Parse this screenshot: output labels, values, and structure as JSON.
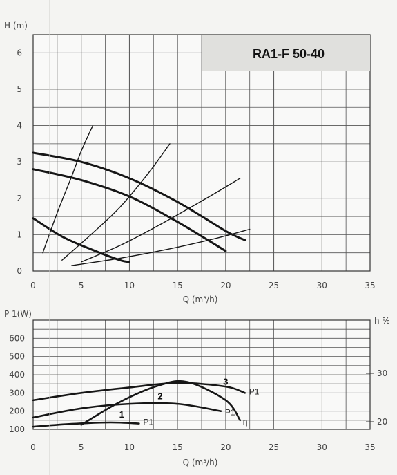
{
  "chart_data": [
    {
      "type": "line",
      "title": "RA1-F 50-40",
      "ylabel": "H (m)",
      "xlabel": "Q (m³/h)",
      "xlim": [
        0,
        35
      ],
      "ylim": [
        0,
        6.5
      ],
      "x_ticks": [
        "0",
        "5",
        "10",
        "15",
        "20",
        "25",
        "30",
        "35"
      ],
      "y_ticks": [
        "0",
        "1",
        "2",
        "3",
        "4",
        "5",
        "6"
      ],
      "grid": true,
      "series": [
        {
          "x": [
            0,
            5,
            10,
            15,
            20,
            22
          ],
          "y": [
            3.25,
            3.0,
            2.55,
            1.9,
            1.1,
            0.85
          ]
        },
        {
          "x": [
            0,
            5,
            10,
            15,
            20
          ],
          "y": [
            2.8,
            2.5,
            2.05,
            1.35,
            0.55
          ]
        },
        {
          "x": [
            0,
            3,
            6,
            9,
            10
          ],
          "y": [
            1.45,
            0.95,
            0.6,
            0.3,
            0.25
          ]
        },
        {
          "x": [
            1,
            2.5,
            4,
            5,
            6.2
          ],
          "y": [
            0.5,
            1.6,
            2.6,
            3.3,
            4.0
          ]
        },
        {
          "x": [
            3,
            6,
            9,
            12,
            14.2
          ],
          "y": [
            0.3,
            1.0,
            1.75,
            2.7,
            3.5
          ]
        },
        {
          "x": [
            5,
            9,
            13,
            18,
            21.5
          ],
          "y": [
            0.25,
            0.7,
            1.25,
            2.0,
            2.55
          ]
        },
        {
          "x": [
            4,
            9,
            14,
            19,
            22.5
          ],
          "y": [
            0.15,
            0.35,
            0.6,
            0.9,
            1.15
          ]
        }
      ]
    },
    {
      "type": "line",
      "ylabel": "P 1(W)",
      "y2label": "h %",
      "xlabel": "Q (m³/h)",
      "xlim": [
        0,
        35
      ],
      "ylim": [
        100,
        700
      ],
      "y2_ticks": [
        "20",
        "30"
      ],
      "x_ticks": [
        "0",
        "5",
        "10",
        "15",
        "20",
        "25",
        "30",
        "35"
      ],
      "y_ticks": [
        "100",
        "200",
        "300",
        "400",
        "500",
        "600"
      ],
      "grid": true,
      "series": [
        {
          "label": "3",
          "end_label": "P1",
          "x": [
            0,
            5,
            10,
            15,
            20,
            22
          ],
          "y": [
            260,
            300,
            330,
            355,
            335,
            300
          ]
        },
        {
          "label": "2",
          "end_label": "P1",
          "x": [
            0,
            5,
            10,
            15,
            19.5
          ],
          "y": [
            165,
            215,
            240,
            240,
            200
          ]
        },
        {
          "label": "1",
          "end_label": "P1",
          "x": [
            0,
            4,
            8,
            11
          ],
          "y": [
            115,
            130,
            138,
            132
          ]
        },
        {
          "end_label": "η",
          "x": [
            5,
            9,
            13,
            16,
            20,
            21.5
          ],
          "y": [
            125,
            250,
            340,
            360,
            260,
            150
          ]
        }
      ]
    }
  ]
}
